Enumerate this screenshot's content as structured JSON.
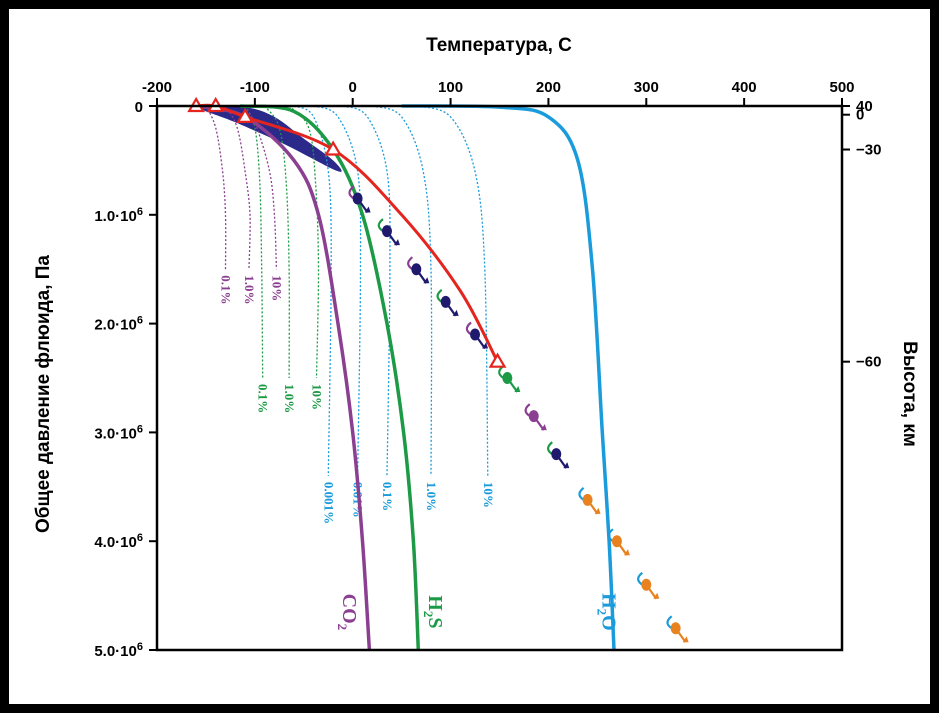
{
  "chart_data": {
    "type": "line",
    "title": "",
    "x_axis": {
      "label": "Температура, С",
      "range": [
        -200,
        500
      ],
      "ticks": [
        -200,
        -100,
        0,
        100,
        200,
        300,
        400,
        500
      ],
      "tick_labels": [
        "-200",
        "-100",
        "0",
        "100",
        "200",
        "300",
        "400",
        "500"
      ]
    },
    "y_axis_left": {
      "label": "Общее давление флюида, Па",
      "range": [
        0,
        5000000
      ],
      "inverted": true,
      "ticks": [
        0,
        1000000,
        2000000,
        3000000,
        4000000,
        5000000
      ],
      "tick_labels": [
        "0",
        "1.0·10^6",
        "2.0·10^6",
        "3.0·10^6",
        "4.0·10^6",
        "5.0·10^6"
      ]
    },
    "y_axis_right": {
      "label": "Высота, км",
      "ticks": [
        {
          "label": "40",
          "pressure": 0
        },
        {
          "label": "0",
          "pressure": 80000
        },
        {
          "label": "−30",
          "pressure": 400000
        },
        {
          "label": "−60",
          "pressure": 2350000
        }
      ]
    },
    "condensation_curves": [
      {
        "name": "H2O",
        "label": "H",
        "sub": "2",
        "label_tail": "O",
        "color": "#1a9bdc",
        "points": [
          [
            50,
            0
          ],
          [
            150,
            10000
          ],
          [
            200,
            100000
          ],
          [
            230,
            500000
          ],
          [
            245,
            1500000
          ],
          [
            255,
            3000000
          ],
          [
            262,
            4000000
          ],
          [
            267,
            5000000
          ]
        ]
      },
      {
        "name": "H2S",
        "label": "H",
        "sub": "2",
        "label_tail": "S",
        "color": "#1c9a45",
        "points": [
          [
            -115,
            0
          ],
          [
            -60,
            50000
          ],
          [
            -20,
            400000
          ],
          [
            10,
            1000000
          ],
          [
            35,
            2000000
          ],
          [
            52,
            3000000
          ],
          [
            62,
            4000000
          ],
          [
            67,
            5000000
          ]
        ]
      },
      {
        "name": "CO2",
        "label": "CO",
        "sub": "2",
        "label_tail": "",
        "color": "#8b3f91",
        "points": [
          [
            -160,
            0
          ],
          [
            -110,
            100000
          ],
          [
            -60,
            500000
          ],
          [
            -35,
            1000000
          ],
          [
            -15,
            2000000
          ],
          [
            0,
            3000000
          ],
          [
            10,
            4000000
          ],
          [
            17,
            5000000
          ]
        ]
      }
    ],
    "mixing_ratio_curves": [
      {
        "gas": "H2O",
        "label": "0.001%",
        "color": "#1a9bdc",
        "points": [
          [
            -60,
            0
          ],
          [
            -40,
            100000
          ],
          [
            -25,
            600000
          ],
          [
            -22,
            1500000
          ],
          [
            -25,
            3400000
          ]
        ]
      },
      {
        "gas": "H2O",
        "label": "0.01%",
        "color": "#1a9bdc",
        "points": [
          [
            -40,
            0
          ],
          [
            -15,
            100000
          ],
          [
            5,
            600000
          ],
          [
            8,
            1500000
          ],
          [
            5,
            3400000
          ]
        ]
      },
      {
        "gas": "H2O",
        "label": "0.1%",
        "color": "#1a9bdc",
        "points": [
          [
            -10,
            0
          ],
          [
            15,
            100000
          ],
          [
            35,
            600000
          ],
          [
            38,
            1500000
          ],
          [
            35,
            3400000
          ]
        ]
      },
      {
        "gas": "H2O",
        "label": "1.0%",
        "color": "#1a9bdc",
        "points": [
          [
            20,
            0
          ],
          [
            50,
            100000
          ],
          [
            72,
            600000
          ],
          [
            80,
            1500000
          ],
          [
            80,
            3400000
          ]
        ]
      },
      {
        "gas": "H2O",
        "label": "10%",
        "color": "#1a9bdc",
        "points": [
          [
            65,
            0
          ],
          [
            100,
            100000
          ],
          [
            125,
            600000
          ],
          [
            135,
            1500000
          ],
          [
            138,
            3400000
          ]
        ]
      },
      {
        "gas": "H2S",
        "label": "0.1%",
        "color": "#1c9a45",
        "points": [
          [
            -110,
            0
          ],
          [
            -100,
            200000
          ],
          [
            -95,
            700000
          ],
          [
            -93,
            1500000
          ],
          [
            -92,
            2500000
          ]
        ]
      },
      {
        "gas": "H2S",
        "label": "1.0%",
        "color": "#1c9a45",
        "points": [
          [
            -90,
            0
          ],
          [
            -75,
            200000
          ],
          [
            -68,
            700000
          ],
          [
            -65,
            1500000
          ],
          [
            -65,
            2500000
          ]
        ]
      },
      {
        "gas": "H2S",
        "label": "10%",
        "color": "#1c9a45",
        "points": [
          [
            -65,
            0
          ],
          [
            -45,
            200000
          ],
          [
            -38,
            700000
          ],
          [
            -35,
            1500000
          ],
          [
            -37,
            2500000
          ]
        ]
      },
      {
        "gas": "CO2",
        "label": "0.1%",
        "color": "#8b3f91",
        "points": [
          [
            -150,
            0
          ],
          [
            -140,
            200000
          ],
          [
            -133,
            600000
          ],
          [
            -130,
            1000000
          ],
          [
            -130,
            1500000
          ]
        ]
      },
      {
        "gas": "CO2",
        "label": "1.0%",
        "color": "#8b3f91",
        "points": [
          [
            -130,
            0
          ],
          [
            -118,
            200000
          ],
          [
            -110,
            600000
          ],
          [
            -105,
            1000000
          ],
          [
            -106,
            1500000
          ]
        ]
      },
      {
        "gas": "CO2",
        "label": "10%",
        "color": "#8b3f91",
        "points": [
          [
            -110,
            0
          ],
          [
            -98,
            200000
          ],
          [
            -85,
            600000
          ],
          [
            -80,
            1000000
          ],
          [
            -78,
            1500000
          ]
        ]
      }
    ],
    "red_profile": {
      "color": "#e4251f",
      "points": [
        [
          -160,
          0
        ],
        [
          -140,
          0
        ],
        [
          -110,
          100000
        ],
        [
          -20,
          400000
        ],
        [
          50,
          1000000
        ],
        [
          110,
          1700000
        ],
        [
          148,
          2350000
        ]
      ],
      "markers": [
        [
          -160,
          0
        ],
        [
          -140,
          0
        ],
        [
          -110,
          100000
        ],
        [
          -20,
          400000
        ],
        [
          148,
          2350000
        ]
      ]
    },
    "cloud_region": {
      "color": "#2b2a8a",
      "points": [
        [
          -160,
          0
        ],
        [
          -110,
          10000
        ],
        [
          -80,
          100000
        ],
        [
          -50,
          300000
        ],
        [
          -20,
          500000
        ],
        [
          -15,
          600000
        ],
        [
          -70,
          350000
        ],
        [
          -120,
          150000
        ],
        [
          -150,
          50000
        ]
      ]
    },
    "droplet_markers": [
      {
        "x": 5,
        "p": 850000,
        "color": "#1f1a6e",
        "arrow": "#8b3f91"
      },
      {
        "x": 35,
        "p": 1150000,
        "color": "#1f1a6e",
        "arrow": "#1c9a45"
      },
      {
        "x": 65,
        "p": 1500000,
        "color": "#1f1a6e",
        "arrow": "#8b3f91"
      },
      {
        "x": 95,
        "p": 1800000,
        "color": "#1f1a6e",
        "arrow": "#1c9a45"
      },
      {
        "x": 125,
        "p": 2100000,
        "color": "#1f1a6e",
        "arrow": "#8b3f91"
      },
      {
        "x": 158,
        "p": 2500000,
        "color": "#1c9a45",
        "arrow": "#1c9a45"
      },
      {
        "x": 185,
        "p": 2850000,
        "color": "#8b3f91",
        "arrow": "#8b3f91"
      },
      {
        "x": 208,
        "p": 3200000,
        "color": "#1f1a6e",
        "arrow": "#1c9a45"
      },
      {
        "x": 240,
        "p": 3620000,
        "color": "#e8821e",
        "arrow": "#1a9bdc"
      },
      {
        "x": 270,
        "p": 4000000,
        "color": "#e8821e",
        "arrow": "#1a9bdc"
      },
      {
        "x": 300,
        "p": 4400000,
        "color": "#e8821e",
        "arrow": "#1a9bdc"
      },
      {
        "x": 330,
        "p": 4800000,
        "color": "#e8821e",
        "arrow": "#1a9bdc"
      }
    ]
  }
}
